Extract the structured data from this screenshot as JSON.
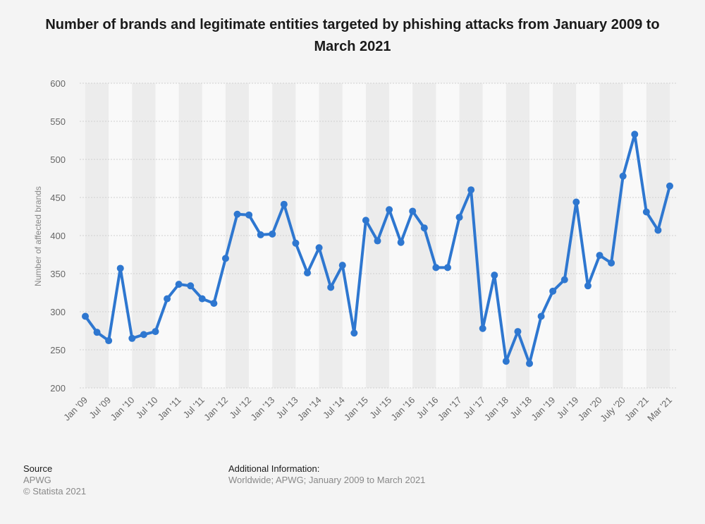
{
  "chart_data": {
    "type": "line",
    "title": "Number of brands and legitimate entities targeted by phishing attacks from January 2009 to March 2021",
    "ylabel": "Number of affected brands",
    "ylim": [
      200,
      600
    ],
    "yticks": [
      200,
      250,
      300,
      350,
      400,
      450,
      500,
      550,
      600
    ],
    "grid": true,
    "line_color": "#2e77d0",
    "x_tick_labels": [
      "Jan '09",
      "Jul '09",
      "Jan '10",
      "Jul '10",
      "Jan '11",
      "Jul '11",
      "Jan '12",
      "Jul '12",
      "Jan '13",
      "Jul '13",
      "Jan '14",
      "Jul '14",
      "Jan '15",
      "Jul '15",
      "Jan '16",
      "Jul '16",
      "Jan '17",
      "Jul '17",
      "Jan '18",
      "Jul '18",
      "Jan '19",
      "Jul '19",
      "Jan '20",
      "July '20",
      "Jan '21",
      "Mar '21"
    ],
    "x_tick_index": [
      0,
      2,
      4,
      6,
      8,
      10,
      12,
      14,
      16,
      18,
      20,
      22,
      24,
      26,
      28,
      30,
      32,
      34,
      36,
      38,
      40,
      42,
      44,
      46,
      48,
      50
    ],
    "series": [
      {
        "values": [
          294,
          273,
          262,
          357,
          265,
          270,
          274,
          317,
          336,
          334,
          317,
          311,
          370,
          428,
          427,
          401,
          402,
          441,
          390,
          351,
          384,
          332,
          361,
          272,
          420,
          393,
          434,
          391,
          432,
          410,
          358,
          358,
          424,
          460,
          278,
          348,
          235,
          274,
          232,
          294,
          327,
          342,
          444,
          334,
          374,
          364,
          478,
          533,
          431,
          407,
          465
        ]
      }
    ]
  },
  "footer": {
    "source_heading": "Source",
    "source_name": "APWG",
    "copyright": "© Statista 2021",
    "info_heading": "Additional Information:",
    "info_text": "Worldwide; APWG; January 2009 to March 2021"
  }
}
